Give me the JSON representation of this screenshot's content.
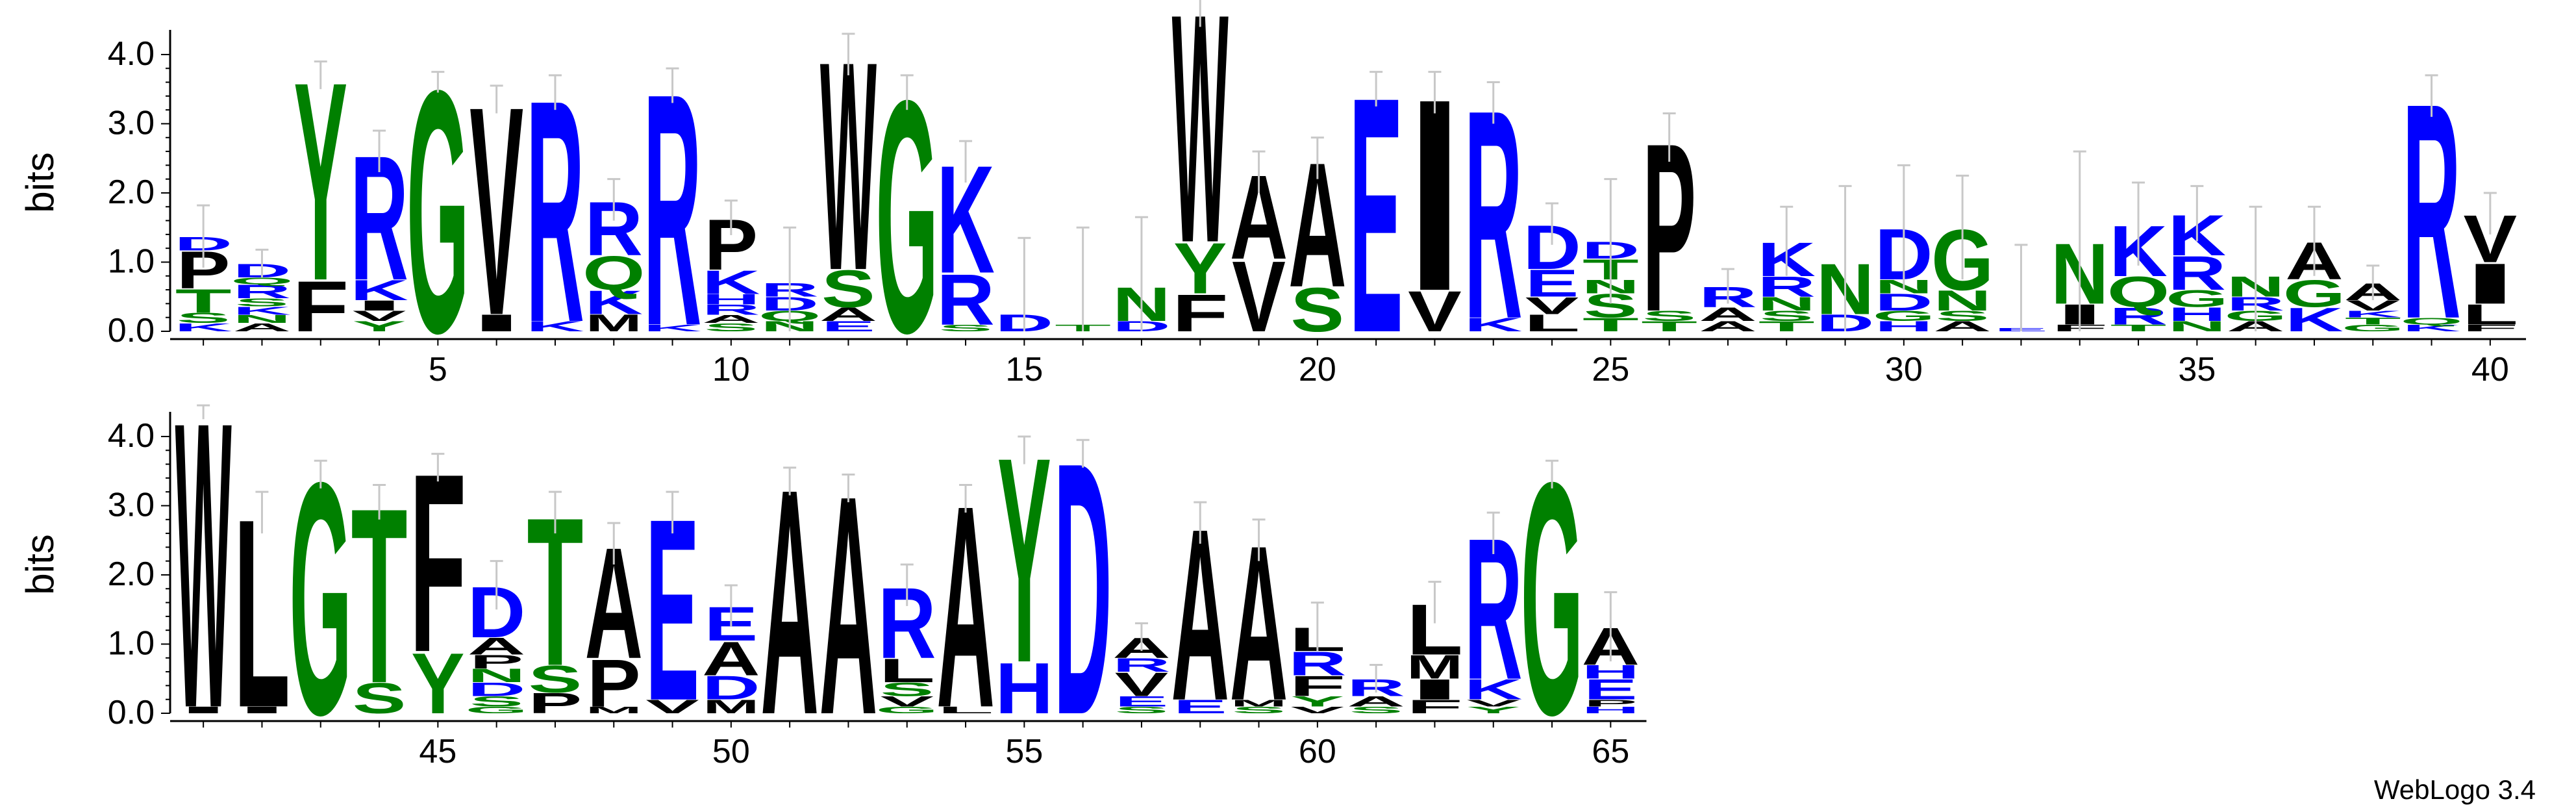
{
  "chart_data": {
    "type": "sequence-logo",
    "ylabel": "bits",
    "ylim": [
      0,
      4.3
    ],
    "yticks": [
      "0.0",
      "1.0",
      "2.0",
      "3.0",
      "4.0"
    ],
    "rows": [
      {
        "start": 1,
        "end": 40,
        "xticks": [
          5,
          10,
          15,
          20,
          25,
          30,
          35,
          40
        ]
      },
      {
        "start": 41,
        "end": 65,
        "xticks": [
          45,
          50,
          55,
          60,
          65
        ]
      }
    ],
    "colors": {
      "green": "#008000",
      "blue": "#0000ff",
      "black": "#000000",
      "errorbar": "#c8c8c8"
    },
    "positions": [
      {
        "pos": 1,
        "err": 0.45,
        "stack": [
          [
            "K",
            0.12
          ],
          [
            "S",
            0.15
          ],
          [
            "T",
            0.35
          ],
          [
            "P",
            0.55
          ],
          [
            "D",
            0.2
          ]
        ]
      },
      {
        "pos": 2,
        "err": 0.2,
        "stack": [
          [
            "A",
            0.12
          ],
          [
            "N",
            0.12
          ],
          [
            "K",
            0.12
          ],
          [
            "S",
            0.12
          ],
          [
            "R",
            0.2
          ],
          [
            "Q",
            0.1
          ],
          [
            "D",
            0.2
          ]
        ]
      },
      {
        "pos": 3,
        "err": 0.2,
        "stack": [
          [
            "F",
            0.75
          ],
          [
            "Y",
            2.95
          ]
        ]
      },
      {
        "pos": 4,
        "err": 0.3,
        "stack": [
          [
            "Y",
            0.15
          ],
          [
            "V",
            0.15
          ],
          [
            "I",
            0.15
          ],
          [
            "K",
            0.3
          ],
          [
            "R",
            1.85
          ]
        ]
      },
      {
        "pos": 5,
        "err": 0.15,
        "stack": [
          [
            "G",
            3.6
          ]
        ]
      },
      {
        "pos": 6,
        "err": 0.2,
        "stack": [
          [
            "I",
            0.25
          ],
          [
            "V",
            3.1
          ]
        ]
      },
      {
        "pos": 7,
        "err": 0.25,
        "stack": [
          [
            "K",
            0.15
          ],
          [
            "R",
            3.3
          ]
        ]
      },
      {
        "pos": 8,
        "err": 0.3,
        "stack": [
          [
            "M",
            0.25
          ],
          [
            "K",
            0.35
          ],
          [
            "Q",
            0.5
          ],
          [
            "R",
            0.8
          ]
        ]
      },
      {
        "pos": 9,
        "err": 0.25,
        "stack": [
          [
            "K",
            0.1
          ],
          [
            "R",
            3.45
          ]
        ]
      },
      {
        "pos": 10,
        "err": 0.25,
        "stack": [
          [
            "S",
            0.12
          ],
          [
            "A",
            0.12
          ],
          [
            "R",
            0.15
          ],
          [
            "H",
            0.15
          ],
          [
            "K",
            0.35
          ],
          [
            "P",
            0.75
          ]
        ]
      },
      {
        "pos": 11,
        "err": 0.8,
        "stack": [
          [
            "N",
            0.15
          ],
          [
            "Q",
            0.15
          ],
          [
            "D",
            0.2
          ],
          [
            "R",
            0.2
          ]
        ]
      },
      {
        "pos": 12,
        "err": 0.3,
        "stack": [
          [
            "E",
            0.15
          ],
          [
            "A",
            0.2
          ],
          [
            "S",
            0.55
          ],
          [
            "W",
            3.1
          ]
        ]
      },
      {
        "pos": 13,
        "err": 0.25,
        "stack": [
          [
            "G",
            3.45
          ]
        ]
      },
      {
        "pos": 14,
        "err": 0.3,
        "stack": [
          [
            "S",
            0.1
          ],
          [
            "R",
            0.75
          ],
          [
            "K",
            1.6
          ]
        ]
      },
      {
        "pos": 15,
        "err": 1.1,
        "stack": [
          [
            "D",
            0.25
          ]
        ]
      },
      {
        "pos": 16,
        "err": 1.4,
        "stack": [
          [
            "T",
            0.1
          ]
        ]
      },
      {
        "pos": 17,
        "err": 1.0,
        "stack": [
          [
            "D",
            0.15
          ],
          [
            "N",
            0.5
          ]
        ]
      },
      {
        "pos": 18,
        "err": 0.3,
        "stack": [
          [
            "F",
            0.55
          ],
          [
            "Y",
            0.75
          ],
          [
            "W",
            3.4
          ]
        ]
      },
      {
        "pos": 19,
        "err": 0.3,
        "stack": [
          [
            "V",
            1.05
          ],
          [
            "A",
            1.25
          ]
        ]
      },
      {
        "pos": 20,
        "err": 0.3,
        "stack": [
          [
            "S",
            0.65
          ],
          [
            "A",
            1.85
          ]
        ]
      },
      {
        "pos": 21,
        "err": 0.25,
        "stack": [
          [
            "E",
            3.5
          ]
        ]
      },
      {
        "pos": 22,
        "err": 0.3,
        "stack": [
          [
            "V",
            0.6
          ],
          [
            "I",
            2.85
          ]
        ]
      },
      {
        "pos": 23,
        "err": 0.3,
        "stack": [
          [
            "K",
            0.2
          ],
          [
            "R",
            3.1
          ]
        ]
      },
      {
        "pos": 24,
        "err": 0.3,
        "stack": [
          [
            "L",
            0.25
          ],
          [
            "V",
            0.25
          ],
          [
            "E",
            0.4
          ],
          [
            "D",
            0.65
          ]
        ]
      },
      {
        "pos": 25,
        "err": 0.9,
        "stack": [
          [
            "T",
            0.2
          ],
          [
            "S",
            0.35
          ],
          [
            "N",
            0.2
          ],
          [
            "T",
            0.3
          ],
          [
            "D",
            0.25
          ]
        ]
      },
      {
        "pos": 26,
        "err": 0.35,
        "stack": [
          [
            "T",
            0.15
          ],
          [
            "S",
            0.15
          ],
          [
            "P",
            2.5
          ]
        ]
      },
      {
        "pos": 27,
        "err": 0.25,
        "stack": [
          [
            "A",
            0.15
          ],
          [
            "A",
            0.2
          ],
          [
            "R",
            0.3
          ]
        ]
      },
      {
        "pos": 28,
        "err": 0.5,
        "stack": [
          [
            "T",
            0.15
          ],
          [
            "S",
            0.15
          ],
          [
            "N",
            0.2
          ],
          [
            "R",
            0.3
          ],
          [
            "K",
            0.5
          ]
        ]
      },
      {
        "pos": 29,
        "err": 1.1,
        "stack": [
          [
            "D",
            0.25
          ],
          [
            "N",
            0.75
          ]
        ]
      },
      {
        "pos": 30,
        "err": 0.9,
        "stack": [
          [
            "H",
            0.15
          ],
          [
            "G",
            0.15
          ],
          [
            "D",
            0.25
          ],
          [
            "N",
            0.2
          ],
          [
            "D",
            0.75
          ]
        ]
      },
      {
        "pos": 31,
        "err": 0.75,
        "stack": [
          [
            "A",
            0.15
          ],
          [
            "S",
            0.15
          ],
          [
            "N",
            0.3
          ],
          [
            "G",
            0.9
          ]
        ]
      },
      {
        "pos": 32,
        "err": 1.2,
        "stack": [
          [
            "E",
            0.05
          ]
        ]
      },
      {
        "pos": 33,
        "err": 1.3,
        "stack": [
          [
            "F",
            0.1
          ],
          [
            "I",
            0.3
          ],
          [
            "N",
            0.9
          ]
        ]
      },
      {
        "pos": 34,
        "err": 0.6,
        "stack": [
          [
            "T",
            0.1
          ],
          [
            "R",
            0.25
          ],
          [
            "Q",
            0.45
          ],
          [
            "K",
            0.75
          ]
        ]
      },
      {
        "pos": 35,
        "err": 0.4,
        "stack": [
          [
            "N",
            0.15
          ],
          [
            "H",
            0.2
          ],
          [
            "G",
            0.25
          ],
          [
            "R",
            0.5
          ],
          [
            "K",
            0.6
          ]
        ]
      },
      {
        "pos": 36,
        "err": 1.0,
        "stack": [
          [
            "A",
            0.15
          ],
          [
            "G",
            0.15
          ],
          [
            "R",
            0.2
          ],
          [
            "N",
            0.3
          ]
        ]
      },
      {
        "pos": 37,
        "err": 0.5,
        "stack": [
          [
            "K",
            0.35
          ],
          [
            "G",
            0.4
          ],
          [
            "A",
            0.55
          ]
        ]
      },
      {
        "pos": 38,
        "err": 0.25,
        "stack": [
          [
            "G",
            0.1
          ],
          [
            "T",
            0.1
          ],
          [
            "K",
            0.1
          ],
          [
            "V",
            0.15
          ],
          [
            "A",
            0.25
          ]
        ]
      },
      {
        "pos": 39,
        "err": 0.3,
        "stack": [
          [
            "K",
            0.1
          ],
          [
            "Q",
            0.1
          ],
          [
            "R",
            3.2
          ]
        ]
      },
      {
        "pos": 40,
        "err": 0.3,
        "stack": [
          [
            "F",
            0.1
          ],
          [
            "L",
            0.3
          ],
          [
            "I",
            0.6
          ],
          [
            "V",
            0.7
          ]
        ]
      },
      {
        "pos": 41,
        "err": 0.1,
        "stack": [
          [
            "I",
            0.1
          ],
          [
            "W",
            4.25
          ]
        ]
      },
      {
        "pos": 42,
        "err": 0.3,
        "stack": [
          [
            "I",
            0.1
          ],
          [
            "L",
            2.8
          ]
        ]
      },
      {
        "pos": 43,
        "err": 0.2,
        "stack": [
          [
            "G",
            3.45
          ]
        ]
      },
      {
        "pos": 44,
        "err": 0.25,
        "stack": [
          [
            "S",
            0.45
          ],
          [
            "T",
            2.6
          ]
        ]
      },
      {
        "pos": 45,
        "err": 0.2,
        "stack": [
          [
            "Y",
            0.9
          ],
          [
            "F",
            2.65
          ]
        ]
      },
      {
        "pos": 46,
        "err": 0.35,
        "stack": [
          [
            "G",
            0.1
          ],
          [
            "S",
            0.15
          ],
          [
            "D",
            0.2
          ],
          [
            "N",
            0.2
          ],
          [
            "P",
            0.2
          ],
          [
            "A",
            0.25
          ],
          [
            "D",
            0.75
          ]
        ]
      },
      {
        "pos": 47,
        "err": 0.3,
        "stack": [
          [
            "P",
            0.3
          ],
          [
            "S",
            0.4
          ],
          [
            "T",
            2.2
          ]
        ]
      },
      {
        "pos": 48,
        "err": 0.3,
        "stack": [
          [
            "M",
            0.1
          ],
          [
            "P",
            0.7
          ],
          [
            "A",
            1.65
          ]
        ]
      },
      {
        "pos": 49,
        "err": 0.3,
        "stack": [
          [
            "V",
            0.2
          ],
          [
            "E",
            2.7
          ]
        ]
      },
      {
        "pos": 50,
        "err": 0.3,
        "stack": [
          [
            "M",
            0.2
          ],
          [
            "D",
            0.35
          ],
          [
            "A",
            0.5
          ],
          [
            "E",
            0.5
          ]
        ]
      },
      {
        "pos": 51,
        "err": 0.2,
        "stack": [
          [
            "A",
            3.35
          ]
        ]
      },
      {
        "pos": 52,
        "err": 0.2,
        "stack": [
          [
            "A",
            3.25
          ]
        ]
      },
      {
        "pos": 53,
        "err": 0.3,
        "stack": [
          [
            "G",
            0.1
          ],
          [
            "V",
            0.15
          ],
          [
            "S",
            0.2
          ],
          [
            "L",
            0.35
          ],
          [
            "R",
            1.05
          ]
        ]
      },
      {
        "pos": 54,
        "err": 0.2,
        "stack": [
          [
            "L",
            0.1
          ],
          [
            "A",
            3.0
          ]
        ]
      },
      {
        "pos": 55,
        "err": 0.2,
        "stack": [
          [
            "H",
            0.75
          ],
          [
            "Y",
            3.05
          ]
        ]
      },
      {
        "pos": 56,
        "err": 0.2,
        "stack": [
          [
            "D",
            3.75
          ]
        ]
      },
      {
        "pos": 57,
        "err": 0.2,
        "stack": [
          [
            "S",
            0.1
          ],
          [
            "E",
            0.15
          ],
          [
            "V",
            0.35
          ],
          [
            "R",
            0.2
          ],
          [
            "A",
            0.3
          ]
        ]
      },
      {
        "pos": 58,
        "err": 0.3,
        "stack": [
          [
            "E",
            0.2
          ],
          [
            "A",
            2.55
          ]
        ]
      },
      {
        "pos": 59,
        "err": 0.3,
        "stack": [
          [
            "S",
            0.1
          ],
          [
            "M",
            0.1
          ],
          [
            "A",
            2.3
          ]
        ]
      },
      {
        "pos": 60,
        "err": 0.35,
        "stack": [
          [
            "V",
            0.1
          ],
          [
            "Y",
            0.15
          ],
          [
            "F",
            0.3
          ],
          [
            "R",
            0.35
          ],
          [
            "L",
            0.35
          ]
        ]
      },
      {
        "pos": 61,
        "err": 0.2,
        "stack": [
          [
            "S",
            0.1
          ],
          [
            "A",
            0.15
          ],
          [
            "R",
            0.25
          ]
        ]
      },
      {
        "pos": 62,
        "err": 0.3,
        "stack": [
          [
            "F",
            0.2
          ],
          [
            "I",
            0.3
          ],
          [
            "M",
            0.35
          ],
          [
            "L",
            0.75
          ]
        ]
      },
      {
        "pos": 63,
        "err": 0.3,
        "stack": [
          [
            "Y",
            0.1
          ],
          [
            "V",
            0.1
          ],
          [
            "K",
            0.3
          ],
          [
            "R",
            2.1
          ]
        ]
      },
      {
        "pos": 64,
        "err": 0.2,
        "stack": [
          [
            "G",
            3.45
          ]
        ]
      },
      {
        "pos": 65,
        "err": 0.5,
        "stack": [
          [
            "H",
            0.1
          ],
          [
            "P",
            0.1
          ],
          [
            "E",
            0.3
          ],
          [
            "H",
            0.2
          ],
          [
            "A",
            0.55
          ]
        ]
      }
    ]
  },
  "footer": {
    "credit": "WebLogo 3.4"
  }
}
